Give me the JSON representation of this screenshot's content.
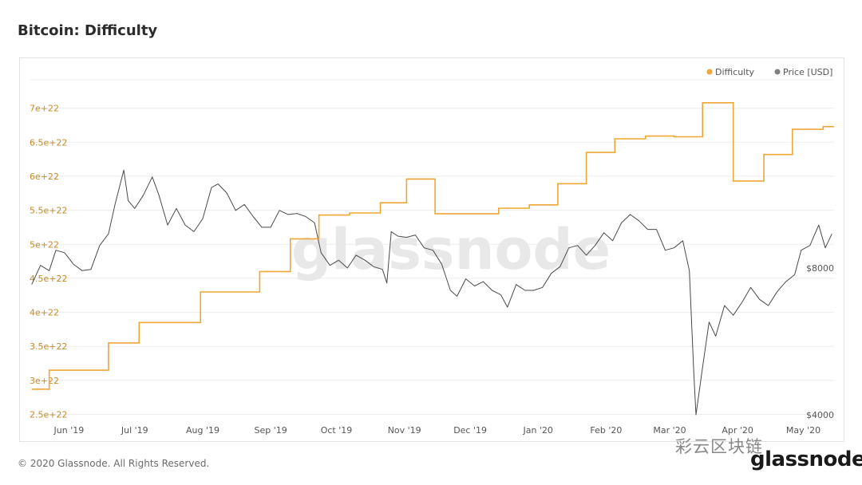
{
  "header": {
    "title": "Bitcoin: Difficulty"
  },
  "footer": {
    "copyright": "© 2020 Glassnode. All Rights Reserved.",
    "brand": "glassnode"
  },
  "watermark": {
    "center": "glassnode",
    "social": "彩云区块链"
  },
  "colors": {
    "difficulty": "#f0a535",
    "price": "#4a4a4a",
    "gridline": "#ececec",
    "difficulty_axis": "#c6892b"
  },
  "chart_data": {
    "type": "line",
    "title": "Bitcoin: Difficulty",
    "legend": {
      "placement": "top-right",
      "entries": [
        "Difficulty",
        "Price [USD]"
      ]
    },
    "x_ticks": [
      "Jun '19",
      "Jul '19",
      "Aug '19",
      "Sep '19",
      "Oct '19",
      "Nov '19",
      "Dec '19",
      "Jan '20",
      "Feb '20",
      "Mar '20",
      "Apr '20",
      "May '20"
    ],
    "y_left": {
      "ticks": [
        2.5e+22,
        3e+22,
        3.5e+22,
        4e+22,
        4.5e+22,
        5e+22,
        5.5e+22,
        6e+22,
        6.5e+22,
        7e+22
      ],
      "tick_labels": [
        "2.5e+22",
        "3e+22",
        "3.5e+22",
        "4e+22",
        "4.5e+22",
        "5e+22",
        "5.5e+22",
        "6e+22",
        "6.5e+22",
        "7e+22"
      ],
      "range": [
        2.4e+22,
        7.5e+22
      ]
    },
    "y_right": {
      "scale": "log",
      "tick_labels": [
        "$4000",
        "$8000"
      ],
      "ticks": [
        4000,
        8000
      ]
    },
    "grid": true,
    "series": [
      {
        "name": "Difficulty",
        "step": true,
        "x": [
          "2019-05-15",
          "2019-05-23",
          "2019-06-06",
          "2019-06-19",
          "2019-07-03",
          "2019-07-17",
          "2019-07-31",
          "2019-08-13",
          "2019-08-27",
          "2019-09-10",
          "2019-09-23",
          "2019-10-07",
          "2019-10-21",
          "2019-11-02",
          "2019-11-15",
          "2019-11-30",
          "2019-12-14",
          "2019-12-28",
          "2020-01-10",
          "2020-01-23",
          "2020-02-05",
          "2020-02-19",
          "2020-03-03",
          "2020-03-16",
          "2020-03-30",
          "2020-04-13",
          "2020-04-26",
          "2020-05-10"
        ],
        "y": [
          2.87e+22,
          3.15e+22,
          3.15e+22,
          3.55e+22,
          3.85e+22,
          3.85e+22,
          4.3e+22,
          4.3e+22,
          4.6e+22,
          5.08e+22,
          5.43e+22,
          5.46e+22,
          5.61e+22,
          5.96e+22,
          5.45e+22,
          5.45e+22,
          5.53e+22,
          5.58e+22,
          5.89e+22,
          6.35e+22,
          6.55e+22,
          6.59e+22,
          6.58e+22,
          7.08e+22,
          5.93e+22,
          6.32e+22,
          6.69e+22,
          6.73e+22
        ]
      },
      {
        "name": "Price [USD]",
        "x": [
          "2019-05-15",
          "2019-05-19",
          "2019-05-23",
          "2019-05-26",
          "2019-05-30",
          "2019-06-03",
          "2019-06-07",
          "2019-06-11",
          "2019-06-15",
          "2019-06-19",
          "2019-06-22",
          "2019-06-26",
          "2019-06-28",
          "2019-07-01",
          "2019-07-05",
          "2019-07-09",
          "2019-07-12",
          "2019-07-16",
          "2019-07-20",
          "2019-07-24",
          "2019-07-28",
          "2019-08-01",
          "2019-08-05",
          "2019-08-08",
          "2019-08-12",
          "2019-08-16",
          "2019-08-20",
          "2019-08-24",
          "2019-08-28",
          "2019-09-01",
          "2019-09-05",
          "2019-09-09",
          "2019-09-13",
          "2019-09-17",
          "2019-09-21",
          "2019-09-24",
          "2019-09-28",
          "2019-10-02",
          "2019-10-06",
          "2019-10-10",
          "2019-10-14",
          "2019-10-18",
          "2019-10-22",
          "2019-10-24",
          "2019-10-26",
          "2019-10-29",
          "2019-11-02",
          "2019-11-06",
          "2019-11-10",
          "2019-11-14",
          "2019-11-18",
          "2019-11-22",
          "2019-11-25",
          "2019-11-29",
          "2019-12-03",
          "2019-12-07",
          "2019-12-11",
          "2019-12-15",
          "2019-12-18",
          "2019-12-22",
          "2019-12-26",
          "2019-12-30",
          "2020-01-03",
          "2020-01-07",
          "2020-01-11",
          "2020-01-15",
          "2020-01-19",
          "2020-01-23",
          "2020-01-27",
          "2020-01-31",
          "2020-02-04",
          "2020-02-08",
          "2020-02-12",
          "2020-02-16",
          "2020-02-20",
          "2020-02-24",
          "2020-02-28",
          "2020-03-03",
          "2020-03-07",
          "2020-03-10",
          "2020-03-12",
          "2020-03-13",
          "2020-03-16",
          "2020-03-19",
          "2020-03-22",
          "2020-03-26",
          "2020-03-30",
          "2020-04-03",
          "2020-04-07",
          "2020-04-11",
          "2020-04-15",
          "2020-04-19",
          "2020-04-23",
          "2020-04-27",
          "2020-04-30",
          "2020-05-04",
          "2020-05-08",
          "2020-05-11",
          "2020-05-14"
        ],
        "y": [
          7400,
          8100,
          7900,
          8700,
          8600,
          8150,
          7900,
          7950,
          8900,
          9400,
          10800,
          12700,
          11000,
          10600,
          11300,
          12300,
          11300,
          9800,
          10600,
          9800,
          9500,
          10100,
          11700,
          11900,
          11400,
          10500,
          10800,
          10200,
          9700,
          9700,
          10500,
          10300,
          10350,
          10200,
          9900,
          8600,
          8100,
          8300,
          8000,
          8500,
          8300,
          8050,
          7950,
          7450,
          9500,
          9300,
          9250,
          9350,
          8800,
          8700,
          8150,
          7200,
          7000,
          7600,
          7350,
          7500,
          7200,
          7050,
          6650,
          7400,
          7200,
          7200,
          7300,
          7800,
          8050,
          8800,
          8900,
          8500,
          8900,
          9450,
          9100,
          9900,
          10300,
          10000,
          9600,
          9600,
          8700,
          8800,
          9100,
          7900,
          4900,
          4000,
          5000,
          6200,
          5800,
          6700,
          6400,
          6800,
          7300,
          6900,
          6700,
          7150,
          7500,
          7750,
          8700,
          8900,
          9800,
          8800,
          9400
        ]
      }
    ]
  }
}
